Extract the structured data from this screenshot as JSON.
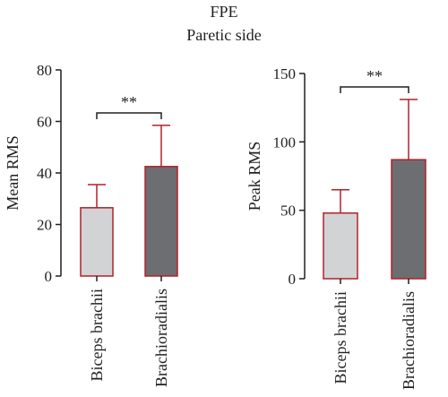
{
  "figure": {
    "title": "FPE",
    "subtitle": "Paretic side"
  },
  "colors": {
    "bar_light": "#d2d3d5",
    "bar_dark": "#6d6e71",
    "bar_edge": "#b2202a",
    "axis": "#231f20"
  },
  "chart_data": [
    {
      "type": "bar",
      "title": "",
      "xlabel": "",
      "ylabel": "Mean RMS",
      "ylim": [
        0,
        80
      ],
      "yticks": [
        0,
        20,
        40,
        60,
        80
      ],
      "categories": [
        "Biceps brachii",
        "Brachioradialis"
      ],
      "values": [
        26.5,
        42.5
      ],
      "error": [
        9,
        16
      ],
      "significance": "**"
    },
    {
      "type": "bar",
      "title": "",
      "xlabel": "",
      "ylabel": "Peak RMS",
      "ylim": [
        0,
        150
      ],
      "yticks": [
        0,
        50,
        100,
        150
      ],
      "categories": [
        "Biceps brachii",
        "Brachioradialis"
      ],
      "values": [
        48,
        87
      ],
      "error": [
        17,
        44
      ],
      "significance": "**"
    }
  ]
}
